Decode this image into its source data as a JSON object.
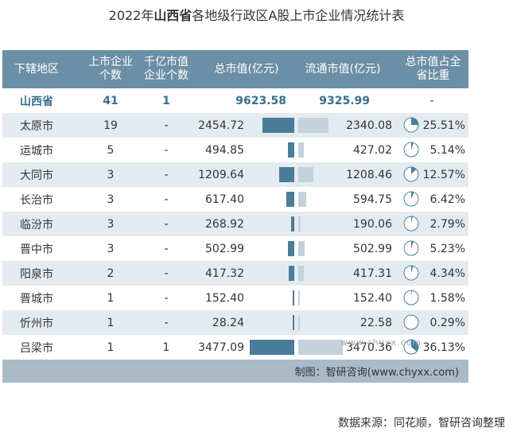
{
  "title": {
    "pre": "2022年",
    "bold": "山西省",
    "post": "各地级行政区A股上市企业情况统计表"
  },
  "headers": {
    "region": "下辖地区",
    "listed": [
      "上市企业",
      "个数"
    ],
    "hundred_b": [
      "千亿市值",
      "企业个数"
    ],
    "total_cap": "总市值(亿元)",
    "float_cap": "流通市值(亿元)",
    "share": [
      "总市值占全",
      "省比重"
    ]
  },
  "chart_data": {
    "type": "table",
    "columns": [
      "下辖地区",
      "上市企业个数",
      "千亿市值企业个数",
      "总市值(亿元)",
      "流通市值(亿元)",
      "总市值占全省比重"
    ],
    "province": {
      "name": "山西省",
      "listed": "41",
      "hundred_b": "1",
      "total_cap": "9623.58",
      "float_cap": "9325.99",
      "share": "-"
    },
    "rows": [
      {
        "name": "太原市",
        "listed": "19",
        "hundred_b": "-",
        "total_cap": "2454.72",
        "float_cap": "2340.08",
        "share": "25.51%",
        "tc": 2454.72,
        "fc": 2340.08,
        "pct": 25.51
      },
      {
        "name": "运城市",
        "listed": "5",
        "hundred_b": "-",
        "total_cap": "494.85",
        "float_cap": "427.02",
        "share": "5.14%",
        "tc": 494.85,
        "fc": 427.02,
        "pct": 5.14
      },
      {
        "name": "大同市",
        "listed": "3",
        "hundred_b": "-",
        "total_cap": "1209.64",
        "float_cap": "1208.46",
        "share": "12.57%",
        "tc": 1209.64,
        "fc": 1208.46,
        "pct": 12.57
      },
      {
        "name": "长治市",
        "listed": "3",
        "hundred_b": "-",
        "total_cap": "617.40",
        "float_cap": "594.75",
        "share": "6.42%",
        "tc": 617.4,
        "fc": 594.75,
        "pct": 6.42
      },
      {
        "name": "临汾市",
        "listed": "3",
        "hundred_b": "-",
        "total_cap": "268.92",
        "float_cap": "190.06",
        "share": "2.79%",
        "tc": 268.92,
        "fc": 190.06,
        "pct": 2.79
      },
      {
        "name": "晋中市",
        "listed": "3",
        "hundred_b": "-",
        "total_cap": "502.99",
        "float_cap": "502.99",
        "share": "5.23%",
        "tc": 502.99,
        "fc": 502.99,
        "pct": 5.23
      },
      {
        "name": "阳泉市",
        "listed": "2",
        "hundred_b": "-",
        "total_cap": "417.32",
        "float_cap": "417.31",
        "share": "4.34%",
        "tc": 417.32,
        "fc": 417.31,
        "pct": 4.34
      },
      {
        "name": "晋城市",
        "listed": "1",
        "hundred_b": "-",
        "total_cap": "152.40",
        "float_cap": "152.40",
        "share": "1.58%",
        "tc": 152.4,
        "fc": 152.4,
        "pct": 1.58
      },
      {
        "name": "忻州市",
        "listed": "1",
        "hundred_b": "-",
        "total_cap": "28.24",
        "float_cap": "22.58",
        "share": "0.29%",
        "tc": 28.24,
        "fc": 22.58,
        "pct": 0.29
      },
      {
        "name": "吕梁市",
        "listed": "1",
        "hundred_b": "1",
        "total_cap": "3477.09",
        "float_cap": "3470.36",
        "share": "36.13%",
        "tc": 3477.09,
        "fc": 3470.36,
        "pct": 36.13
      }
    ],
    "colors": {
      "total_bar": "#4a7d99",
      "float_bar": "#c3d2dc",
      "pie_fill": "#4a7d99",
      "province_text": "#3b6e8e"
    }
  },
  "credit": "制图：智研咨询(www.chyxx.com)",
  "watermark": "www.chyxx.com",
  "source": "数据来源：同花顺，智研咨询整理"
}
